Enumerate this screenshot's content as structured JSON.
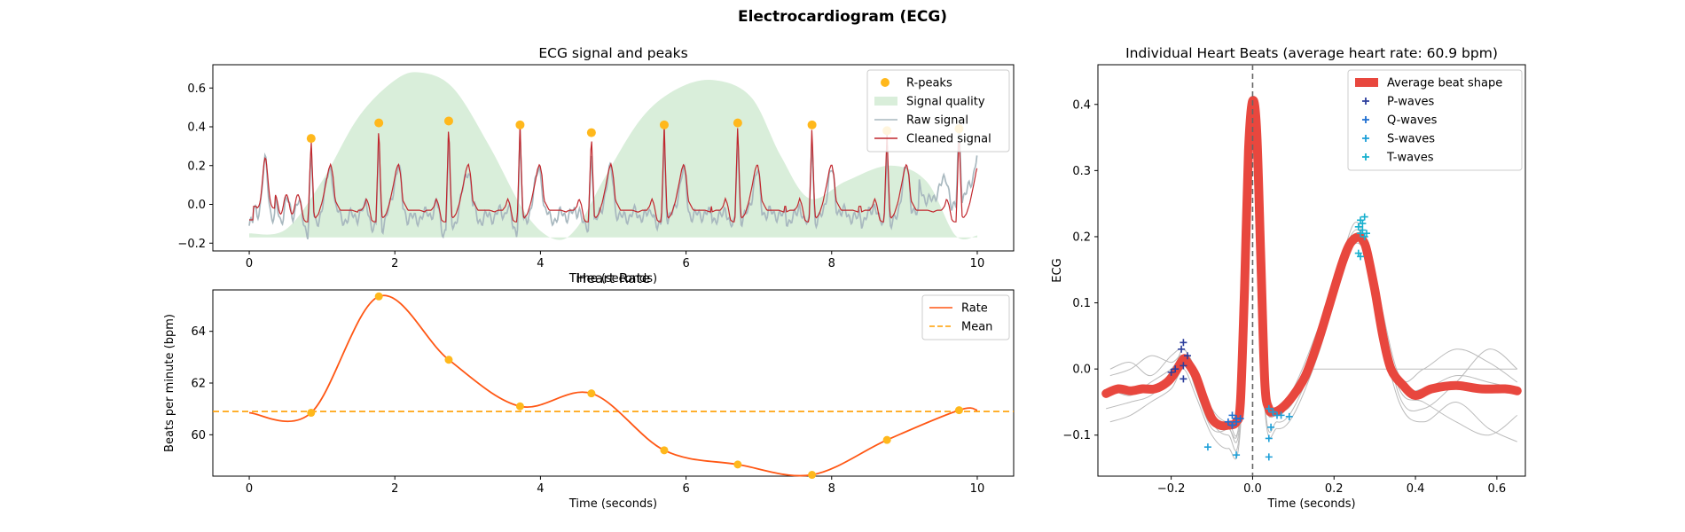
{
  "figure_title": "Electrocardiogram (ECG)",
  "colors": {
    "rpeak": "#FFB81C",
    "quality": "#D9EEDA",
    "raw": "#A8B8BF",
    "cleaned": "#C1272D",
    "rate": "#FF5714",
    "mean": "#FF9E00",
    "avg_beat": "#E8473E",
    "beats": "#BBBBBB",
    "p_wave": "#2C3E9C",
    "q_wave": "#1E6FD1",
    "s_wave": "#1C9FD8",
    "t_wave": "#17B0CE",
    "dash": "#666666"
  },
  "chart_data": [
    {
      "id": "ecg",
      "type": "line",
      "title": "ECG signal and peaks",
      "xlabel": "Time (seconds)",
      "ylabel": "",
      "xlim": [
        -0.5,
        10.5
      ],
      "ylim": [
        -0.24,
        0.72
      ],
      "xticks": [
        0,
        2,
        4,
        6,
        8,
        10
      ],
      "yticks": [
        -0.2,
        0.0,
        0.2,
        0.4,
        0.6
      ],
      "ytick_labels": [
        "−0.2",
        "0.0",
        "0.2",
        "0.4",
        "0.6"
      ],
      "legend_position": "top-right",
      "legend": [
        "R-peaks",
        "Signal quality",
        "Raw signal",
        "Cleaned signal"
      ],
      "r_peaks": {
        "x": [
          0.85,
          1.78,
          2.74,
          3.72,
          4.7,
          5.7,
          6.71,
          7.73,
          8.76,
          9.75
        ],
        "y": [
          0.34,
          0.42,
          0.43,
          0.41,
          0.37,
          0.41,
          0.42,
          0.41,
          0.38,
          0.39
        ]
      },
      "quality": {
        "x": [
          0,
          0.5,
          1.0,
          1.5,
          2.0,
          2.35,
          2.8,
          3.3,
          3.8,
          4.2,
          4.5,
          4.9,
          5.4,
          5.9,
          6.4,
          6.9,
          7.3,
          7.7,
          8.2,
          8.8,
          9.3,
          9.7,
          10.0
        ],
        "y": [
          -0.15,
          -0.13,
          0.12,
          0.45,
          0.64,
          0.68,
          0.6,
          0.3,
          -0.05,
          -0.18,
          -0.12,
          0.15,
          0.45,
          0.6,
          0.64,
          0.55,
          0.25,
          0.03,
          0.12,
          0.2,
          0.12,
          -0.16,
          -0.16
        ]
      },
      "beat_template": {
        "offset": [
          -0.36,
          -0.3,
          -0.24,
          -0.2,
          -0.17,
          -0.14,
          -0.1,
          -0.07,
          -0.04,
          -0.02,
          0.0,
          0.02,
          0.04,
          0.06,
          0.1,
          0.15,
          0.2,
          0.24,
          0.27,
          0.3,
          0.33,
          0.4,
          0.48,
          0.56,
          0.64
        ],
        "value": [
          -0.04,
          -0.03,
          -0.03,
          -0.01,
          0.03,
          0.0,
          -0.08,
          -0.09,
          -0.09,
          0.15,
          0.41,
          0.15,
          -0.06,
          -0.07,
          -0.05,
          0.01,
          0.1,
          0.18,
          0.21,
          0.15,
          0.02,
          -0.03,
          -0.03,
          -0.03,
          -0.04
        ]
      }
    },
    {
      "id": "rate",
      "type": "line",
      "title": "Heart Rate",
      "xlabel": "Time (seconds)",
      "ylabel": "Beats per minute (bpm)",
      "xlim": [
        -0.5,
        10.5
      ],
      "ylim": [
        58.4,
        65.6
      ],
      "xticks": [
        0,
        2,
        4,
        6,
        8,
        10
      ],
      "yticks": [
        60,
        62,
        64
      ],
      "legend_position": "top-right",
      "legend": [
        "Rate",
        "Mean"
      ],
      "mean": 60.9,
      "peaks": {
        "x": [
          0.85,
          1.78,
          2.74,
          3.72,
          4.7,
          5.7,
          6.71,
          7.73,
          8.76,
          9.75
        ],
        "y": [
          60.85,
          65.35,
          62.9,
          61.1,
          61.6,
          59.4,
          58.85,
          58.45,
          59.8,
          60.95
        ]
      }
    },
    {
      "id": "beats",
      "type": "line",
      "title": "Individual Heart Beats (average heart rate: 60.9 bpm)",
      "xlabel": "Time (seconds)",
      "ylabel": "ECG",
      "xlim": [
        -0.38,
        0.67
      ],
      "ylim": [
        -0.162,
        0.46
      ],
      "xticks": [
        -0.2,
        0.0,
        0.2,
        0.4,
        0.6
      ],
      "xtick_labels": [
        "−0.2",
        "0.0",
        "0.2",
        "0.4",
        "0.6"
      ],
      "yticks": [
        -0.1,
        0.0,
        0.1,
        0.2,
        0.3,
        0.4
      ],
      "ytick_labels": [
        "−0.1",
        "0.0",
        "0.1",
        "0.2",
        "0.3",
        "0.4"
      ],
      "legend_position": "top-right",
      "legend": [
        "Average beat shape",
        "P-waves",
        "Q-waves",
        "S-waves",
        "T-waves"
      ],
      "average": {
        "x": [
          -0.36,
          -0.33,
          -0.3,
          -0.27,
          -0.24,
          -0.21,
          -0.19,
          -0.17,
          -0.16,
          -0.14,
          -0.12,
          -0.1,
          -0.08,
          -0.06,
          -0.04,
          -0.03,
          -0.02,
          -0.01,
          0.0,
          0.01,
          0.02,
          0.03,
          0.04,
          0.05,
          0.07,
          0.1,
          0.13,
          0.16,
          0.19,
          0.22,
          0.24,
          0.26,
          0.27,
          0.28,
          0.3,
          0.32,
          0.34,
          0.37,
          0.4,
          0.44,
          0.5,
          0.56,
          0.62,
          0.65
        ],
        "y": [
          -0.037,
          -0.03,
          -0.033,
          -0.03,
          -0.03,
          -0.02,
          -0.005,
          0.015,
          0.01,
          -0.01,
          -0.045,
          -0.075,
          -0.085,
          -0.085,
          -0.08,
          -0.05,
          0.12,
          0.33,
          0.405,
          0.36,
          0.17,
          -0.02,
          -0.06,
          -0.065,
          -0.06,
          -0.04,
          -0.01,
          0.04,
          0.1,
          0.16,
          0.19,
          0.2,
          0.195,
          0.18,
          0.12,
          0.05,
          0.0,
          -0.025,
          -0.04,
          -0.03,
          -0.025,
          -0.03,
          -0.03,
          -0.033
        ]
      },
      "individual_beats": [
        {
          "x": [
            -0.35,
            -0.3,
            -0.25,
            -0.2,
            -0.17,
            -0.14,
            -0.1,
            -0.06,
            -0.03,
            0.0,
            0.03,
            0.06,
            0.1,
            0.16,
            0.22,
            0.26,
            0.3,
            0.36,
            0.42,
            0.5,
            0.58,
            0.65
          ],
          "y": [
            -0.01,
            0.0,
            0.02,
            0.01,
            0.02,
            -0.02,
            -0.07,
            -0.09,
            -0.06,
            0.39,
            -0.02,
            -0.07,
            -0.04,
            0.05,
            0.16,
            0.2,
            0.12,
            -0.02,
            -0.03,
            -0.01,
            -0.02,
            -0.03
          ]
        },
        {
          "x": [
            -0.36,
            -0.3,
            -0.25,
            -0.2,
            -0.17,
            -0.14,
            -0.1,
            -0.06,
            -0.03,
            0.0,
            0.03,
            0.06,
            0.1,
            0.16,
            0.22,
            0.26,
            0.3,
            0.36,
            0.42,
            0.5,
            0.58,
            0.65
          ],
          "y": [
            -0.06,
            -0.05,
            -0.04,
            -0.01,
            0.03,
            -0.01,
            -0.08,
            -0.1,
            -0.08,
            0.41,
            -0.05,
            -0.08,
            -0.06,
            0.03,
            0.17,
            0.22,
            0.11,
            -0.03,
            -0.05,
            -0.08,
            -0.1,
            -0.07
          ]
        },
        {
          "x": [
            -0.35,
            -0.3,
            -0.25,
            -0.2,
            -0.17,
            -0.14,
            -0.1,
            -0.06,
            -0.03,
            0.0,
            0.03,
            0.06,
            0.1,
            0.16,
            0.22,
            0.26,
            0.3,
            0.36,
            0.42,
            0.5,
            0.58,
            0.65
          ],
          "y": [
            -0.03,
            -0.04,
            -0.02,
            0.0,
            0.02,
            -0.03,
            -0.09,
            -0.09,
            -0.07,
            0.4,
            -0.03,
            -0.06,
            -0.05,
            0.04,
            0.15,
            0.19,
            0.13,
            -0.04,
            -0.06,
            -0.02,
            0.03,
            0.0
          ]
        },
        {
          "x": [
            -0.35,
            -0.3,
            -0.25,
            -0.2,
            -0.17,
            -0.14,
            -0.1,
            -0.06,
            -0.03,
            0.0,
            0.03,
            0.06,
            0.1,
            0.16,
            0.22,
            0.26,
            0.3,
            0.36,
            0.42,
            0.5,
            0.58,
            0.65
          ],
          "y": [
            -0.08,
            -0.07,
            -0.05,
            -0.03,
            0.0,
            -0.04,
            -0.1,
            -0.12,
            -0.09,
            0.38,
            -0.06,
            -0.09,
            -0.07,
            0.02,
            0.14,
            0.2,
            0.1,
            -0.05,
            -0.08,
            -0.05,
            -0.09,
            -0.11
          ]
        },
        {
          "x": [
            -0.35,
            -0.3,
            -0.25,
            -0.2,
            -0.17,
            -0.14,
            -0.1,
            -0.06,
            -0.03,
            0.0,
            0.03,
            0.06,
            0.1,
            0.16,
            0.22,
            0.26,
            0.3,
            0.36,
            0.42,
            0.5,
            0.58,
            0.65
          ],
          "y": [
            0.0,
            0.01,
            -0.01,
            0.02,
            0.03,
            0.0,
            -0.06,
            -0.08,
            -0.06,
            0.4,
            -0.01,
            -0.06,
            -0.03,
            0.06,
            0.17,
            0.21,
            0.14,
            -0.01,
            0.0,
            0.03,
            0.01,
            -0.02
          ]
        },
        {
          "x": [
            0.14,
            0.2,
            0.25,
            0.3,
            0.35,
            0.4,
            0.45,
            0.5,
            0.55,
            0.6,
            0.65
          ],
          "y": [
            0.0,
            0.0,
            0.0,
            0.0,
            0.0,
            0.0,
            0.0,
            0.0,
            0.0,
            0.0,
            0.0
          ]
        }
      ],
      "p_waves": {
        "x": [
          -0.2,
          -0.19,
          -0.175,
          -0.17,
          -0.17,
          -0.16,
          -0.17
        ],
        "y": [
          -0.005,
          0.0,
          0.03,
          0.04,
          0.005,
          0.02,
          -0.015
        ]
      },
      "q_waves": {
        "x": [
          -0.06,
          -0.05,
          -0.04,
          -0.05,
          -0.03,
          -0.04,
          -0.05
        ],
        "y": [
          -0.08,
          -0.085,
          -0.075,
          -0.07,
          -0.075,
          -0.08,
          -0.085
        ]
      },
      "s_waves": {
        "x": [
          -0.11,
          -0.04,
          0.04,
          0.04,
          0.045,
          0.06,
          0.05,
          0.07,
          0.09,
          0.05,
          0.04
        ],
        "y": [
          -0.118,
          -0.13,
          -0.133,
          -0.105,
          -0.088,
          -0.07,
          -0.065,
          -0.07,
          -0.072,
          -0.065,
          -0.06
        ]
      },
      "t_waves": {
        "x": [
          0.26,
          0.265,
          0.27,
          0.27,
          0.265,
          0.275,
          0.26,
          0.275,
          0.28,
          0.265
        ],
        "y": [
          0.175,
          0.205,
          0.21,
          0.22,
          0.225,
          0.23,
          0.215,
          0.2,
          0.205,
          0.17
        ]
      }
    }
  ]
}
